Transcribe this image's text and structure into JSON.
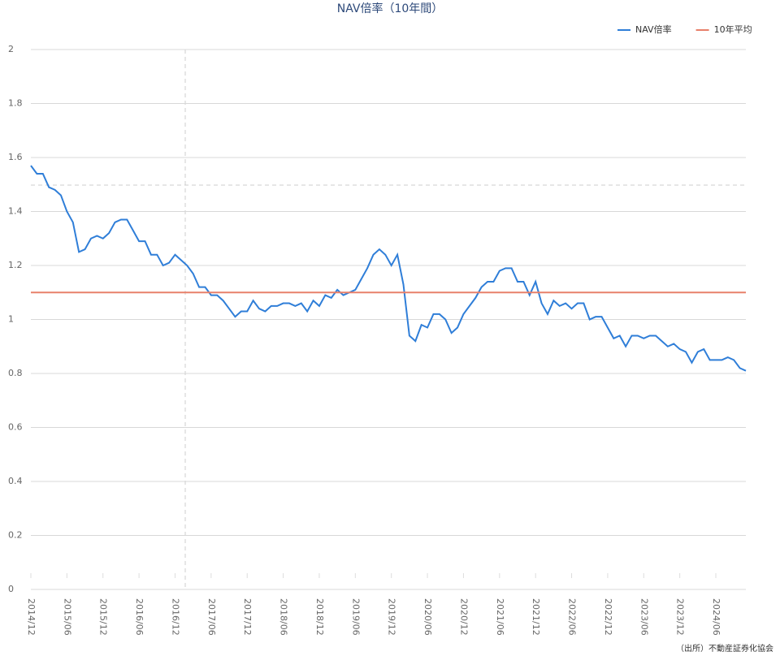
{
  "chart_data": {
    "type": "line",
    "title": "NAV倍率（10年間）",
    "categories": [
      "2014/12",
      null,
      null,
      null,
      null,
      null,
      "2015/06",
      null,
      null,
      null,
      null,
      null,
      "2015/12",
      null,
      null,
      null,
      null,
      null,
      "2016/06",
      null,
      null,
      null,
      null,
      null,
      "2016/12",
      null,
      null,
      null,
      null,
      null,
      "2017/06",
      null,
      null,
      null,
      null,
      null,
      "2017/12",
      null,
      null,
      null,
      null,
      null,
      "2018/06",
      null,
      null,
      null,
      null,
      null,
      "2018/12",
      null,
      null,
      null,
      null,
      null,
      "2019/06",
      null,
      null,
      null,
      null,
      null,
      "2019/12",
      null,
      null,
      null,
      null,
      null,
      "2020/06",
      null,
      null,
      null,
      null,
      null,
      "2020/12",
      null,
      null,
      null,
      null,
      null,
      "2021/06",
      null,
      null,
      null,
      null,
      null,
      "2021/12",
      null,
      null,
      null,
      null,
      null,
      "2022/06",
      null,
      null,
      null,
      null,
      null,
      "2022/12",
      null,
      null,
      null,
      null,
      null,
      "2023/06",
      null,
      null,
      null,
      null,
      null,
      "2023/12",
      null,
      null,
      null,
      null,
      null,
      "2024/06",
      null,
      null,
      null,
      null,
      null
    ],
    "series": [
      {
        "name": "NAV倍率",
        "color": "#2f7ed8",
        "values": [
          1.57,
          1.54,
          1.54,
          1.49,
          1.48,
          1.46,
          1.4,
          1.36,
          1.25,
          1.26,
          1.3,
          1.31,
          1.3,
          1.32,
          1.36,
          1.37,
          1.37,
          1.33,
          1.29,
          1.29,
          1.24,
          1.24,
          1.2,
          1.21,
          1.24,
          1.22,
          1.2,
          1.17,
          1.12,
          1.12,
          1.09,
          1.09,
          1.07,
          1.04,
          1.01,
          1.03,
          1.03,
          1.07,
          1.04,
          1.03,
          1.05,
          1.05,
          1.06,
          1.06,
          1.05,
          1.06,
          1.03,
          1.07,
          1.05,
          1.09,
          1.08,
          1.11,
          1.09,
          1.1,
          1.11,
          1.15,
          1.19,
          1.24,
          1.26,
          1.24,
          1.2,
          1.24,
          1.13,
          0.94,
          0.92,
          0.98,
          0.97,
          1.02,
          1.02,
          1.0,
          0.95,
          0.97,
          1.02,
          1.05,
          1.08,
          1.12,
          1.14,
          1.14,
          1.18,
          1.19,
          1.19,
          1.14,
          1.14,
          1.09,
          1.14,
          1.06,
          1.02,
          1.07,
          1.05,
          1.06,
          1.04,
          1.06,
          1.06,
          1.0,
          1.01,
          1.01,
          0.97,
          0.93,
          0.94,
          0.9,
          0.94,
          0.94,
          0.93,
          0.94,
          0.94,
          0.92,
          0.9,
          0.91,
          0.89,
          0.88,
          0.84,
          0.88,
          0.89,
          0.85,
          0.85,
          0.85,
          0.86,
          0.85,
          0.82,
          0.81
        ]
      },
      {
        "name": "10年平均",
        "color": "#e8806a",
        "values": [
          1.1,
          1.1,
          1.1,
          1.1,
          1.1,
          1.1,
          1.1,
          1.1,
          1.1,
          1.1,
          1.1,
          1.1,
          1.1,
          1.1,
          1.1,
          1.1,
          1.1,
          1.1,
          1.1,
          1.1,
          1.1,
          1.1,
          1.1,
          1.1,
          1.1,
          1.1,
          1.1,
          1.1,
          1.1,
          1.1,
          1.1,
          1.1,
          1.1,
          1.1,
          1.1,
          1.1,
          1.1,
          1.1,
          1.1,
          1.1,
          1.1,
          1.1,
          1.1,
          1.1,
          1.1,
          1.1,
          1.1,
          1.1,
          1.1,
          1.1,
          1.1,
          1.1,
          1.1,
          1.1,
          1.1,
          1.1,
          1.1,
          1.1,
          1.1,
          1.1,
          1.1,
          1.1,
          1.1,
          1.1,
          1.1,
          1.1,
          1.1,
          1.1,
          1.1,
          1.1,
          1.1,
          1.1,
          1.1,
          1.1,
          1.1,
          1.1,
          1.1,
          1.1,
          1.1,
          1.1,
          1.1,
          1.1,
          1.1,
          1.1,
          1.1,
          1.1,
          1.1,
          1.1,
          1.1,
          1.1,
          1.1,
          1.1,
          1.1,
          1.1,
          1.1,
          1.1,
          1.1,
          1.1,
          1.1,
          1.1,
          1.1,
          1.1,
          1.1,
          1.1,
          1.1,
          1.1,
          1.1,
          1.1,
          1.1,
          1.1,
          1.1,
          1.1,
          1.1,
          1.1,
          1.1,
          1.1,
          1.1,
          1.1,
          1.1,
          1.1
        ]
      }
    ],
    "ylim": [
      0,
      2
    ],
    "yticks": [
      0,
      0.2,
      0.4,
      0.6,
      0.8,
      1,
      1.2,
      1.4,
      1.6,
      1.8,
      2
    ],
    "grid": true,
    "legend": "top-right",
    "source": "（出所）不動産証券化協会"
  }
}
